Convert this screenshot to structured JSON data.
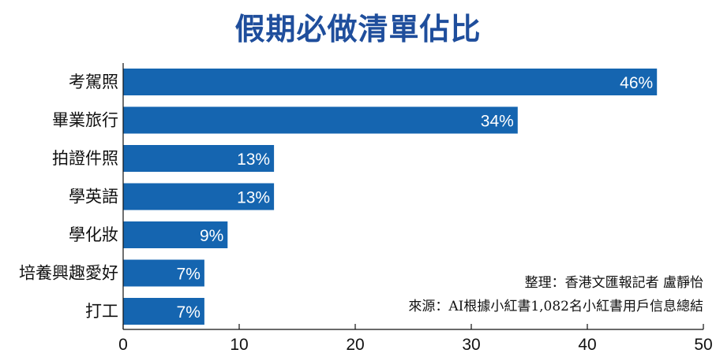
{
  "chart_data": {
    "type": "bar",
    "orientation": "horizontal",
    "title": "假期必做清單佔比",
    "categories": [
      "考駕照",
      "畢業旅行",
      "拍證件照",
      "學英語",
      "學化妝",
      "培養興趣愛好",
      "打工"
    ],
    "values": [
      46,
      34,
      13,
      13,
      9,
      7,
      7
    ],
    "value_labels": [
      "46%",
      "34%",
      "13%",
      "13%",
      "9%",
      "7%",
      "7%"
    ],
    "xlim": [
      0,
      50
    ],
    "xticks": [
      0,
      10,
      20,
      30,
      40,
      50
    ],
    "xtick_labels": [
      "0",
      "10",
      "20",
      "30",
      "40",
      "50"
    ],
    "grid": false,
    "bar_color": "#1565b0",
    "title_color": "#1f4e9c"
  },
  "notes": {
    "credit": "整理：香港文匯報記者  盧靜怡",
    "source": "來源：AI根據小紅書1,082名小紅書用戶信息總結"
  }
}
